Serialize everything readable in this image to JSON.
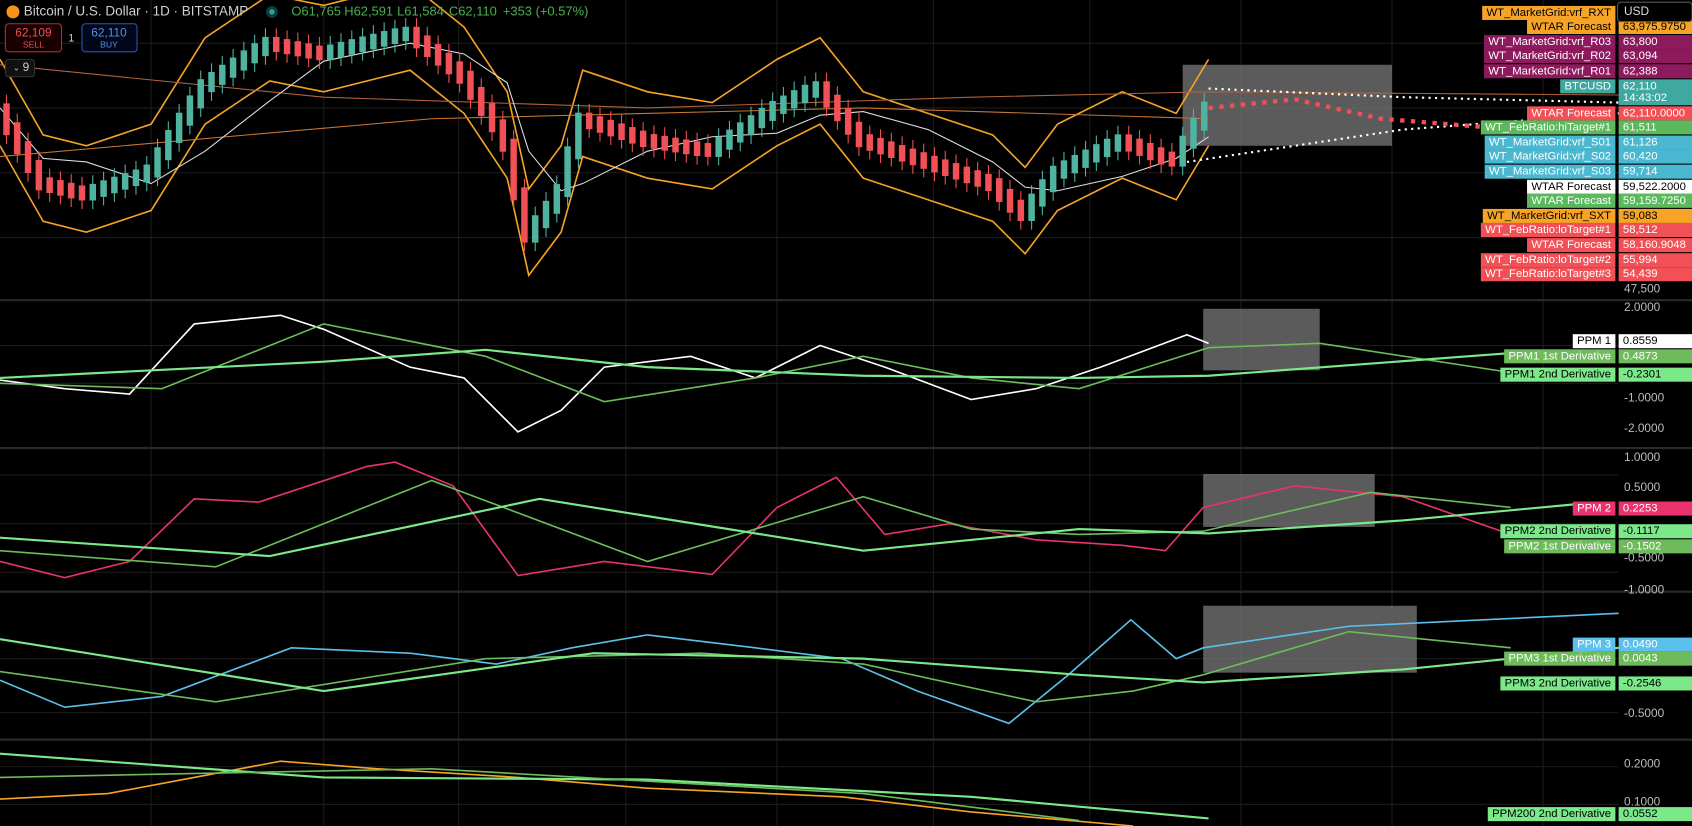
{
  "header": {
    "symbol": "Bitcoin / U.S. Dollar · 1D · BITSTAMP",
    "open": "O61,765",
    "high": "H62,591",
    "low": "L61,584",
    "close": "C62,110",
    "change": "+353 (+0.57%)"
  },
  "trade": {
    "sell_price": "62,109",
    "sell_label": "SELL",
    "spread": "1",
    "buy_price": "62,110",
    "buy_label": "BUY"
  },
  "indicators_count": "9",
  "currency": "USD",
  "panes": [
    {
      "axis_ticks": [
        "47,500"
      ],
      "labels": [
        {
          "name": "WT_MarketGrid:vrf_RXT",
          "color": "#f7a325"
        },
        {
          "name": "WTAR Forecast",
          "value": "63,975.9750",
          "color": "#f7a325"
        },
        {
          "name": "WT_MarketGrid:vrf_R03",
          "value": "63,800",
          "color": "#8e1a5e"
        },
        {
          "name": "WT_MarketGrid:vrf_R02",
          "value": "63,094",
          "color": "#8e1a5e"
        },
        {
          "name": "WT_MarketGrid:vrf_R01",
          "value": "62,388",
          "color": "#8e1a5e"
        },
        {
          "name": "BTCUSD",
          "value": "62,110",
          "time": "14:43:02",
          "color": "#3fa8a0"
        },
        {
          "name": "WTAR Forecast",
          "value": "62,110.0000",
          "color": "#f05056"
        },
        {
          "name": "WT_FebRatio:hiTarget#1",
          "value": "61,511",
          "color": "#5cb85c"
        },
        {
          "name": "WT_MarketGrid:vrf_S01",
          "value": "61,126",
          "color": "#4ab8d0"
        },
        {
          "name": "WT_MarketGrid:vrf_S02",
          "value": "60,420",
          "color": "#4ab8d0"
        },
        {
          "name": "WT_MarketGrid:vrf_S03",
          "value": "59,714",
          "color": "#4ab8d0"
        },
        {
          "name": "WTAR Forecast",
          "value": "59,522.2000",
          "color": "#ffffff"
        },
        {
          "name": "WTAR Forecast",
          "value": "59,159.7250",
          "color": "#5cb85c"
        },
        {
          "name": "WT_MarketGrid:vrf_SXT",
          "value": "59,083",
          "color": "#f7a325"
        },
        {
          "name": "WT_FebRatio:loTarget#1",
          "value": "58,512",
          "color": "#f05056"
        },
        {
          "name": "WTAR Forecast",
          "value": "58,160.9048",
          "color": "#f05056"
        },
        {
          "name": "WT_FebRatio:loTarget#2",
          "value": "55,994",
          "color": "#f05056"
        },
        {
          "name": "WT_FebRatio:loTarget#3",
          "value": "54,439",
          "color": "#f05056"
        }
      ]
    },
    {
      "axis_ticks": [
        "2.0000",
        "-1.0000",
        "-2.0000"
      ],
      "labels": [
        {
          "name": "PPM 1",
          "value": "0.8559",
          "color": "#ffffff"
        },
        {
          "name": "PPM1 1st Derivative",
          "value": "0.4873",
          "color": "#6dbb5a"
        },
        {
          "name": "PPM1 2nd Derivative",
          "value": "-0.2301",
          "color": "#7be88a"
        }
      ]
    },
    {
      "axis_ticks": [
        "1.0000",
        "0.5000",
        "-0.5000",
        "-1.0000"
      ],
      "labels": [
        {
          "name": "PPM 2",
          "value": "0.2253",
          "color": "#e8336d"
        },
        {
          "name": "PPM2 2nd Derivative",
          "value": "-0.1117",
          "color": "#7be88a"
        },
        {
          "name": "PPM2 1st Derivative",
          "value": "-0.1502",
          "color": "#6dbb5a"
        }
      ]
    },
    {
      "axis_ticks": [
        "-0.5000"
      ],
      "labels": [
        {
          "name": "PPM 3",
          "value": "0.0490",
          "color": "#5bc0eb"
        },
        {
          "name": "PPM3 1st Derivative",
          "value": "0.0043",
          "color": "#6dbb5a"
        },
        {
          "name": "PPM3 2nd Derivative",
          "value": "-0.2546",
          "color": "#7be88a"
        }
      ]
    },
    {
      "axis_ticks": [
        "0.2000",
        "0.1000"
      ],
      "labels": [
        {
          "name": "PPM200 2nd Derivative",
          "value": "0.0552",
          "color": "#7be88a"
        }
      ]
    }
  ]
}
